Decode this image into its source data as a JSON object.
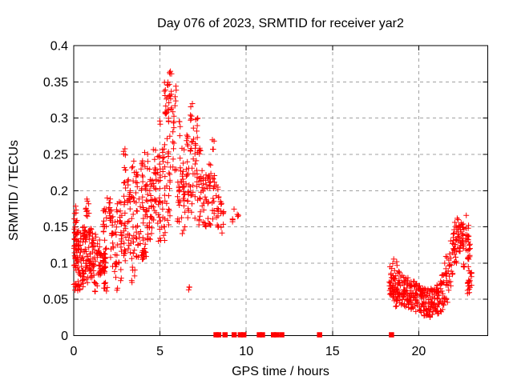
{
  "chart_data": {
    "type": "scatter",
    "title": "Day 076 of 2023, SRMTID for receiver yar2",
    "xlabel": "GPS time / hours",
    "ylabel": "SRMTID / TECUs",
    "xlim": [
      0,
      24
    ],
    "ylim": [
      0,
      0.4
    ],
    "xticks": [
      0,
      5,
      10,
      15,
      20
    ],
    "xtick_labels": [
      "0",
      "5",
      "10",
      "15",
      "20"
    ],
    "yticks": [
      0,
      0.05,
      0.1,
      0.15,
      0.2,
      0.25,
      0.3,
      0.35,
      0.4
    ],
    "ytick_labels": [
      "0",
      "0.05",
      "0.1",
      "0.15",
      "0.2",
      "0.25",
      "0.3",
      "0.35",
      "0.4"
    ],
    "grid": true,
    "legend_position": "none",
    "marker": "plus",
    "marker_color": "#ff0000",
    "grid_color": "#a0a0a0",
    "axis_color": "#000000",
    "background_color": "#ffffff",
    "observed": {
      "x_data_extent_hours": [
        0,
        23.05
      ],
      "y_peak_TECUs": 0.365,
      "left_cluster_hours": [
        0,
        9.6
      ],
      "right_cluster_hours": [
        18.2,
        23.05
      ],
      "gap_hours": [
        9.9,
        18.2
      ]
    },
    "clusters_format": "[x_center_hours, x_halfwidth_hours, y_min_TECUs, y_max_TECUs, point_count]",
    "clusters": [
      [
        0.1,
        0.1,
        0.055,
        0.165,
        40
      ],
      [
        0.1,
        0.05,
        0.15,
        0.185,
        5
      ],
      [
        0.3,
        0.1,
        0.06,
        0.145,
        30
      ],
      [
        0.5,
        0.1,
        0.065,
        0.15,
        28
      ],
      [
        0.78,
        0.1,
        0.16,
        0.19,
        10
      ],
      [
        0.72,
        0.12,
        0.07,
        0.15,
        30
      ],
      [
        0.95,
        0.12,
        0.075,
        0.155,
        30
      ],
      [
        1.2,
        0.12,
        0.06,
        0.15,
        26
      ],
      [
        1.45,
        0.1,
        0.065,
        0.14,
        20
      ],
      [
        1.7,
        0.15,
        0.085,
        0.115,
        30
      ],
      [
        1.85,
        0.1,
        0.055,
        0.082,
        8
      ],
      [
        1.8,
        0.1,
        0.115,
        0.175,
        16
      ],
      [
        2.05,
        0.12,
        0.165,
        0.19,
        8
      ],
      [
        2.2,
        0.1,
        0.095,
        0.175,
        20
      ],
      [
        2.45,
        0.1,
        0.06,
        0.185,
        20
      ],
      [
        2.7,
        0.1,
        0.065,
        0.2,
        22
      ],
      [
        2.95,
        0.07,
        0.1,
        0.265,
        26
      ],
      [
        3.2,
        0.1,
        0.11,
        0.22,
        22
      ],
      [
        3.45,
        0.1,
        0.06,
        0.245,
        24
      ],
      [
        3.7,
        0.12,
        0.1,
        0.23,
        24
      ],
      [
        3.95,
        0.1,
        0.11,
        0.25,
        24
      ],
      [
        4.1,
        0.15,
        0.105,
        0.115,
        10
      ],
      [
        4.2,
        0.1,
        0.11,
        0.255,
        26
      ],
      [
        4.45,
        0.1,
        0.12,
        0.23,
        24
      ],
      [
        4.7,
        0.1,
        0.12,
        0.26,
        24
      ],
      [
        4.95,
        0.1,
        0.13,
        0.3,
        26
      ],
      [
        5.2,
        0.1,
        0.13,
        0.28,
        24
      ],
      [
        5.45,
        0.22,
        0.305,
        0.365,
        30
      ],
      [
        5.5,
        0.12,
        0.15,
        0.3,
        24
      ],
      [
        5.85,
        0.12,
        0.21,
        0.345,
        18
      ],
      [
        6.1,
        0.1,
        0.15,
        0.3,
        22
      ],
      [
        6.35,
        0.1,
        0.14,
        0.26,
        24
      ],
      [
        6.6,
        0.1,
        0.16,
        0.28,
        22
      ],
      [
        6.7,
        0.04,
        0.062,
        0.076,
        3
      ],
      [
        6.85,
        0.1,
        0.17,
        0.335,
        24
      ],
      [
        7.1,
        0.1,
        0.16,
        0.3,
        22
      ],
      [
        7.35,
        0.1,
        0.15,
        0.26,
        22
      ],
      [
        7.6,
        0.1,
        0.15,
        0.225,
        20
      ],
      [
        7.85,
        0.1,
        0.15,
        0.24,
        20
      ],
      [
        8.1,
        0.08,
        0.15,
        0.275,
        18
      ],
      [
        8.33,
        0.08,
        0.14,
        0.21,
        14
      ],
      [
        8.6,
        0.12,
        0.14,
        0.19,
        12
      ],
      [
        9.25,
        0.06,
        0.155,
        0.18,
        4
      ],
      [
        9.5,
        0.05,
        0.155,
        0.175,
        3
      ],
      [
        18.4,
        0.12,
        0.055,
        0.097,
        26
      ],
      [
        18.62,
        0.15,
        0.096,
        0.106,
        4
      ],
      [
        18.6,
        0.12,
        0.04,
        0.092,
        28
      ],
      [
        18.85,
        0.12,
        0.045,
        0.09,
        26
      ],
      [
        19.1,
        0.12,
        0.04,
        0.085,
        24
      ],
      [
        19.35,
        0.12,
        0.038,
        0.08,
        24
      ],
      [
        19.6,
        0.12,
        0.035,
        0.075,
        24
      ],
      [
        19.85,
        0.12,
        0.033,
        0.075,
        24
      ],
      [
        20.1,
        0.12,
        0.03,
        0.07,
        24
      ],
      [
        20.35,
        0.12,
        0.027,
        0.066,
        24
      ],
      [
        20.6,
        0.12,
        0.024,
        0.065,
        24
      ],
      [
        20.85,
        0.12,
        0.028,
        0.065,
        24
      ],
      [
        21.1,
        0.12,
        0.025,
        0.07,
        24
      ],
      [
        21.35,
        0.12,
        0.03,
        0.085,
        22
      ],
      [
        21.6,
        0.12,
        0.045,
        0.11,
        20
      ],
      [
        21.85,
        0.12,
        0.055,
        0.135,
        18
      ],
      [
        22.1,
        0.11,
        0.1,
        0.158,
        24
      ],
      [
        22.33,
        0.11,
        0.115,
        0.168,
        26
      ],
      [
        22.53,
        0.09,
        0.12,
        0.165,
        18
      ],
      [
        22.62,
        0.03,
        0.09,
        0.1,
        5
      ],
      [
        22.8,
        0.09,
        0.105,
        0.167,
        16
      ],
      [
        22.92,
        0.07,
        0.095,
        0.14,
        10
      ],
      [
        22.9,
        0.08,
        0.058,
        0.09,
        14
      ],
      [
        23.02,
        0.05,
        0.062,
        0.09,
        6
      ]
    ],
    "zero_value_x_hours": [
      8.25,
      8.4,
      8.77,
      9.3,
      9.66,
      9.86,
      10.76,
      10.94,
      11.58,
      11.76,
      12.06,
      14.25,
      18.42
    ]
  }
}
